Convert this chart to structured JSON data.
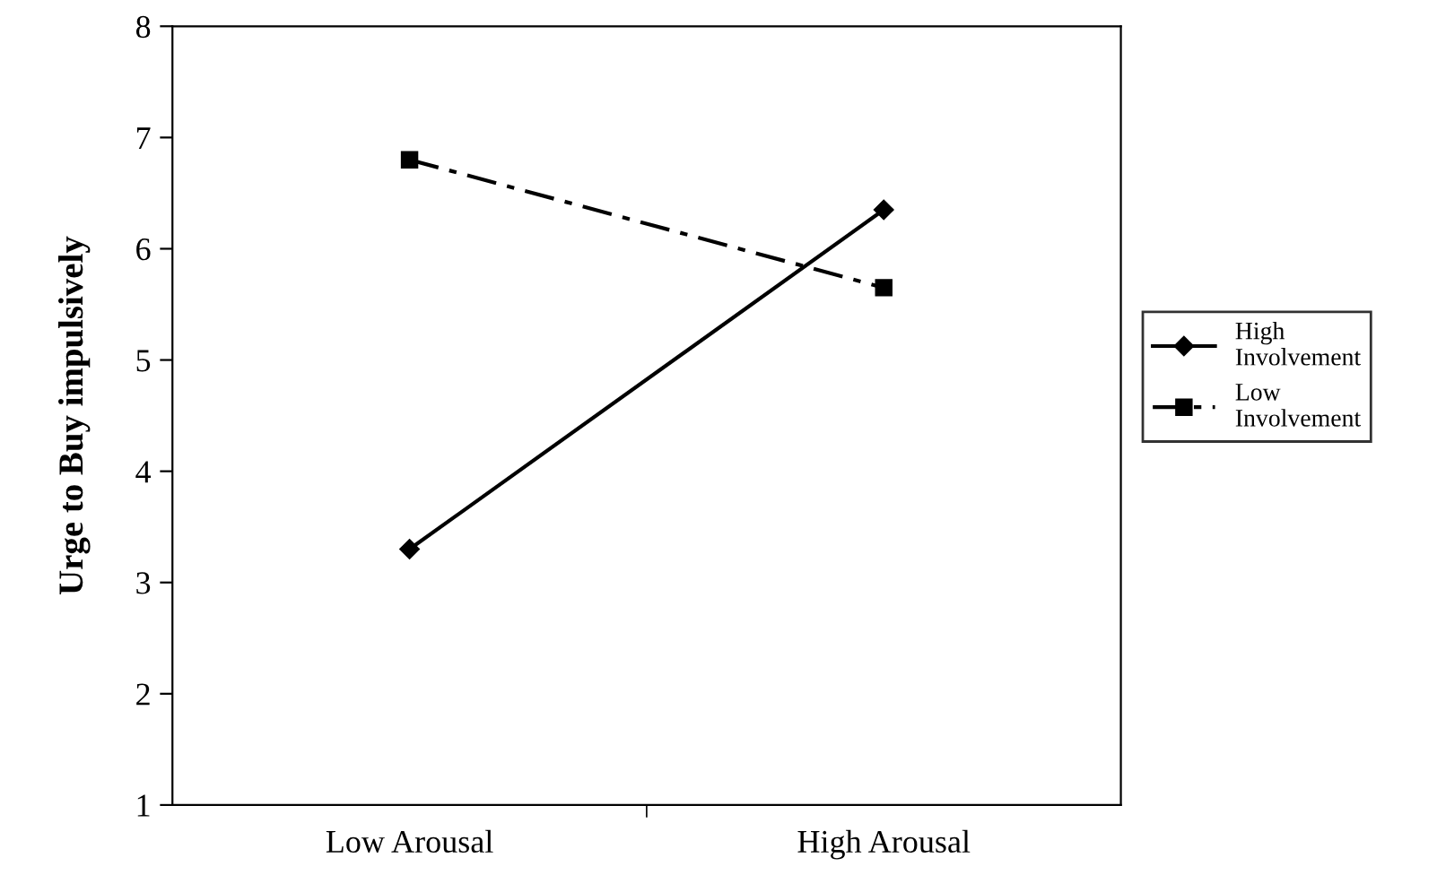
{
  "chart_data": {
    "type": "line",
    "ylabel": "Urge to Buy impulsively",
    "categories": [
      "Low Arousal",
      "High Arousal"
    ],
    "ylim": [
      1,
      8
    ],
    "yticks": [
      1,
      2,
      3,
      4,
      5,
      6,
      7,
      8
    ],
    "grid": false,
    "legend": "right",
    "series": [
      {
        "name": "High Involvement",
        "color": "#000000",
        "values": [
          3.3,
          6.35
        ],
        "marker": "diamond",
        "line_style": "solid"
      },
      {
        "name": "Low Involvement",
        "color": "#000000",
        "values": [
          6.8,
          5.65
        ],
        "marker": "square",
        "line_style": "dashed"
      }
    ]
  }
}
